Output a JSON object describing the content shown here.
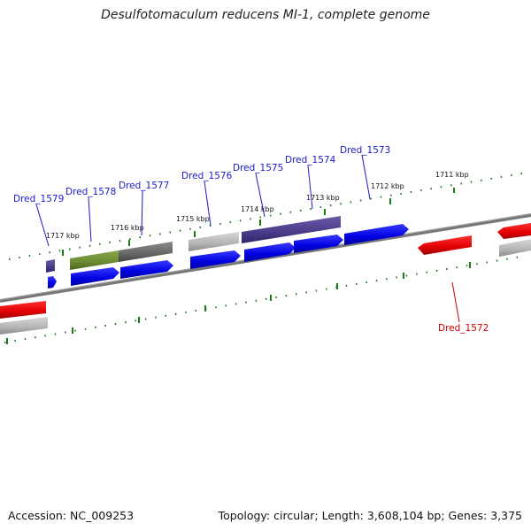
{
  "title": "Desulfotomaculum reducens MI-1, complete genome",
  "footer": {
    "accession": "Accession: NC_009253",
    "topology": "Topology: circular; Length: 3,608,104 bp; Genes: 3,375"
  },
  "kbp_labels": {
    "k1711": "1711 kbp",
    "k1712": "1712 kbp",
    "k1713": "1713 kbp",
    "k1714": "1714 kbp",
    "k1715": "1715 kbp",
    "k1716": "1716 kbp",
    "k1717": "1717 kbp"
  },
  "gene_labels": {
    "g1572": "Dred_1572",
    "g1573": "Dred_1573",
    "g1574": "Dred_1574",
    "g1575": "Dred_1575",
    "g1576": "Dred_1576",
    "g1577": "Dred_1577",
    "g1578": "Dred_1578",
    "g1579": "Dred_1579"
  },
  "colors": {
    "gene_label": "#1a1acc",
    "highlight_label": "#cc0000",
    "forward_gene": "#1010e0",
    "reverse_gene": "#e00000",
    "ruler_tick": "#1a7a1a",
    "backbone": "#7a7a7a"
  }
}
